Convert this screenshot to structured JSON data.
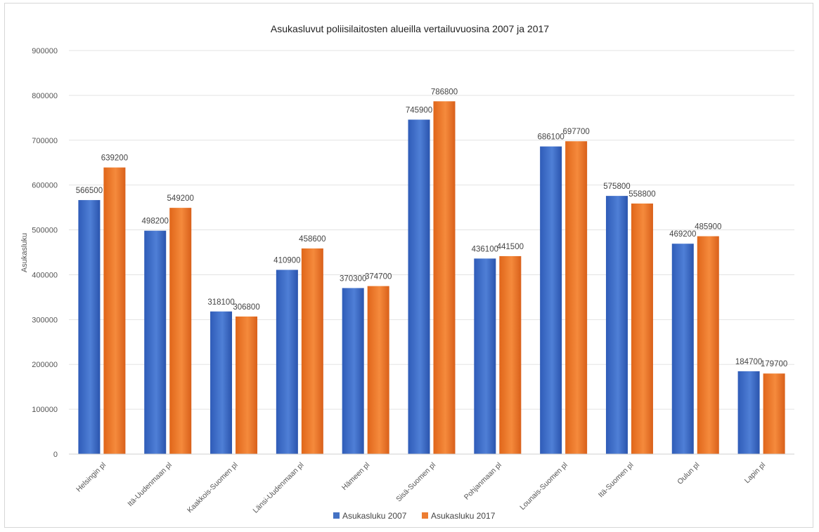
{
  "chart_data": {
    "type": "bar",
    "title": "Asukasluvut poliisilaitosten alueilla vertailuvuosina 2007 ja 2017",
    "ylabel": "Asukasluku",
    "xlabel": "",
    "ylim": [
      0,
      900000
    ],
    "yticks": [
      "0",
      "100000",
      "200000",
      "300000",
      "400000",
      "500000",
      "600000",
      "700000",
      "800000",
      "900000"
    ],
    "grid": true,
    "legend_position": "bottom",
    "categories": [
      "Helsingin pl",
      "Itä-Uudenmaan pl",
      "Kaakkois-Suomen pl",
      "Länsi-Uudenmaan pl",
      "Hämeen pl",
      "Sisä-Suomen pl",
      "Pohjanmaan pl",
      "Lounais-Suomen pl",
      "Itä-Suomen pl",
      "Oulun pl",
      "Lapin pl"
    ],
    "series": [
      {
        "name": "Asukasluku 2007",
        "color": "#4472c4",
        "values": [
          566500,
          498200,
          318100,
          410900,
          370300,
          745900,
          436100,
          686100,
          575800,
          469200,
          184700
        ]
      },
      {
        "name": "Asukasluku 2017",
        "color": "#ed7d31",
        "values": [
          639200,
          549200,
          306800,
          458600,
          374700,
          786800,
          441500,
          697700,
          558800,
          485900,
          179700
        ]
      }
    ]
  }
}
